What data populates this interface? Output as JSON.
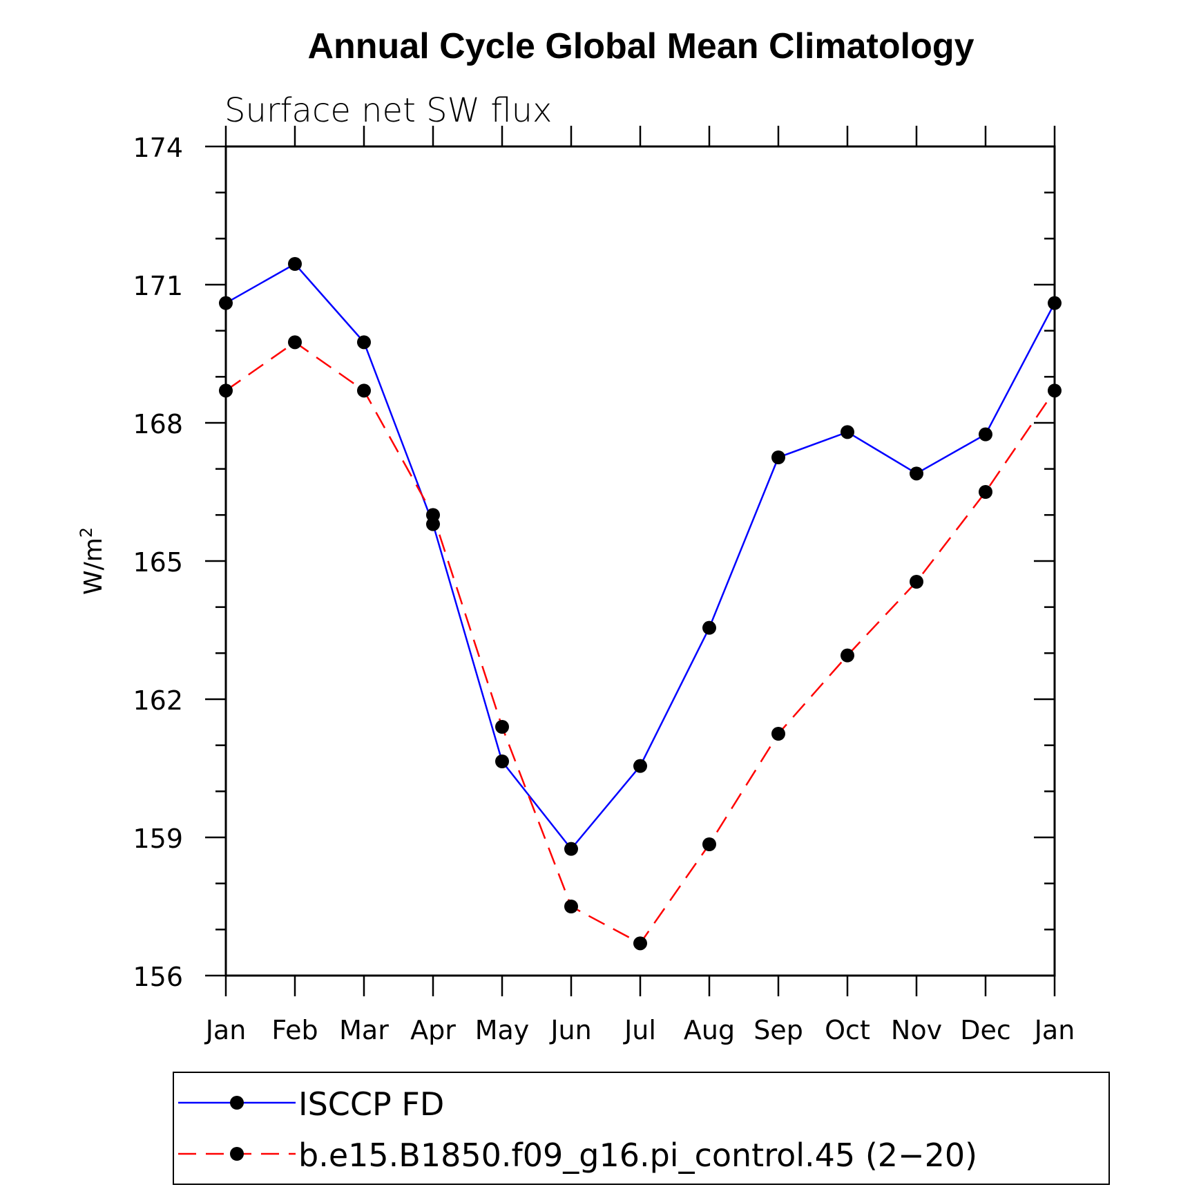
{
  "chart_data": {
    "type": "line",
    "title": "Annual Cycle Global Mean Climatology",
    "subtitle": "Surface net SW flux",
    "ylabel": "W/m",
    "ylabel_sup": "2",
    "xlabel": "",
    "categories": [
      "Jan",
      "Feb",
      "Mar",
      "Apr",
      "May",
      "Jun",
      "Jul",
      "Aug",
      "Sep",
      "Oct",
      "Nov",
      "Dec",
      "Jan"
    ],
    "ylim": [
      156,
      174
    ],
    "yticks": [
      156,
      159,
      162,
      165,
      168,
      171,
      174
    ],
    "ytick_labels": [
      "156",
      "159",
      "162",
      "165",
      "168",
      "171",
      "174"
    ],
    "grid": false,
    "legend_position": "bottom",
    "series": [
      {
        "name": "ISCCP FD",
        "color": "#0000ff",
        "dash": "solid",
        "marker": "filled-circle",
        "values": [
          170.6,
          171.45,
          169.75,
          165.8,
          160.65,
          158.75,
          160.55,
          163.55,
          167.25,
          167.8,
          166.9,
          167.75,
          170.6
        ]
      },
      {
        "name": "b.e15.B1850.f09_g16.pi_control.45 (2−20)",
        "color": "#ff0000",
        "dash": "dashed",
        "marker": "filled-circle",
        "values": [
          168.7,
          169.75,
          168.7,
          166.0,
          161.4,
          157.5,
          156.7,
          158.85,
          161.25,
          162.95,
          164.55,
          166.5,
          168.7
        ]
      }
    ]
  }
}
